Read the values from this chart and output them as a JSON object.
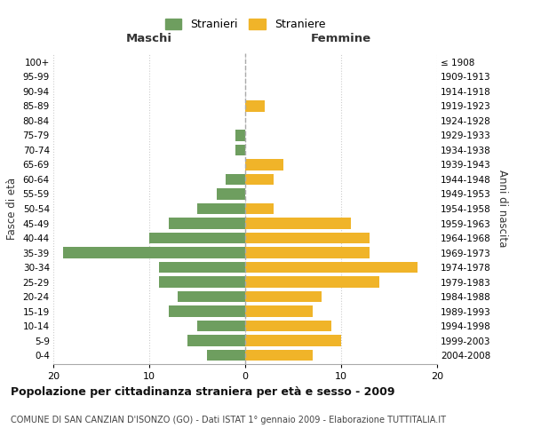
{
  "age_groups": [
    "0-4",
    "5-9",
    "10-14",
    "15-19",
    "20-24",
    "25-29",
    "30-34",
    "35-39",
    "40-44",
    "45-49",
    "50-54",
    "55-59",
    "60-64",
    "65-69",
    "70-74",
    "75-79",
    "80-84",
    "85-89",
    "90-94",
    "95-99",
    "100+"
  ],
  "birth_years": [
    "2004-2008",
    "1999-2003",
    "1994-1998",
    "1989-1993",
    "1984-1988",
    "1979-1983",
    "1974-1978",
    "1969-1973",
    "1964-1968",
    "1959-1963",
    "1954-1958",
    "1949-1953",
    "1944-1948",
    "1939-1943",
    "1934-1938",
    "1929-1933",
    "1924-1928",
    "1919-1923",
    "1914-1918",
    "1909-1913",
    "≤ 1908"
  ],
  "maschi": [
    4,
    6,
    5,
    8,
    7,
    9,
    9,
    19,
    10,
    8,
    5,
    3,
    2,
    0,
    1,
    1,
    0,
    0,
    0,
    0,
    0
  ],
  "femmine": [
    7,
    10,
    9,
    7,
    8,
    14,
    18,
    13,
    13,
    11,
    3,
    0,
    3,
    4,
    0,
    0,
    0,
    2,
    0,
    0,
    0
  ],
  "maschi_color": "#6e9e5f",
  "femmine_color": "#f0b429",
  "background_color": "#ffffff",
  "grid_color": "#cccccc",
  "title": "Popolazione per cittadinanza straniera per età e sesso - 2009",
  "subtitle": "COMUNE DI SAN CANZIAN D'ISONZO (GO) - Dati ISTAT 1° gennaio 2009 - Elaborazione TUTTITALIA.IT",
  "xlabel_left": "Maschi",
  "xlabel_right": "Femmine",
  "ylabel_left": "Fasce di età",
  "ylabel_right": "Anni di nascita",
  "legend_stranieri": "Stranieri",
  "legend_straniere": "Straniere",
  "xlim": 20
}
